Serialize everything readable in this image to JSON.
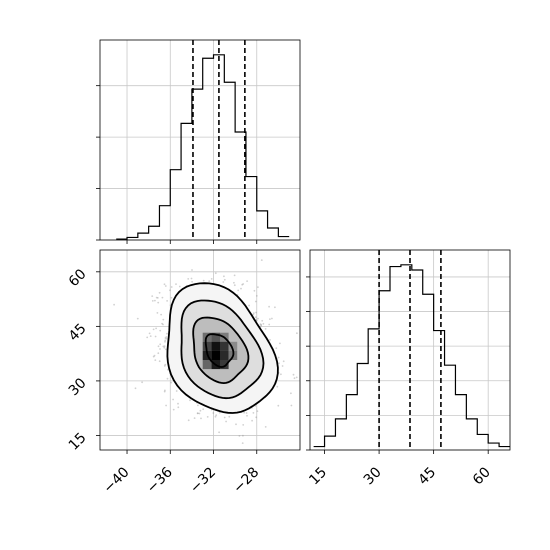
{
  "chart_data": [
    {
      "panel": "top-left",
      "type": "histogram",
      "variable": "x",
      "xlim": [
        -42.5,
        -24
      ],
      "bins": [
        -41,
        -40,
        -39,
        -38,
        -37,
        -36,
        -35,
        -34,
        -33,
        -32,
        -31,
        -30,
        -29,
        -28,
        -27,
        -26,
        -25
      ],
      "values": [
        0.5,
        1.5,
        4,
        8,
        20,
        41,
        68,
        88,
        106,
        108,
        92,
        63,
        37,
        17,
        7,
        2
      ],
      "quantile_lines": [
        -33.9,
        -31.5,
        -29.1
      ],
      "grid": true
    },
    {
      "panel": "bottom-right",
      "type": "histogram",
      "variable": "y",
      "xlim": [
        11,
        66
      ],
      "xticks": [
        15,
        30,
        45,
        60
      ],
      "xtick_labels": [
        "15",
        "30",
        "45",
        "60"
      ],
      "bins": [
        12,
        15,
        18,
        21,
        24,
        27,
        30,
        33,
        36,
        39,
        42,
        45,
        48,
        51,
        54,
        57,
        60,
        63,
        66
      ],
      "values": [
        2,
        8,
        18,
        32,
        50,
        70,
        92,
        106,
        107,
        104,
        90,
        69,
        49,
        32,
        18,
        9,
        4,
        2
      ],
      "quantile_lines": [
        30,
        38.5,
        47
      ],
      "grid": true
    },
    {
      "panel": "bottom-left",
      "type": "scatter-contour",
      "x_variable": "x",
      "y_variable": "y",
      "xlim": [
        -42.5,
        -24
      ],
      "ylim": [
        11,
        66
      ],
      "xticks": [
        -40,
        -36,
        -32,
        -28
      ],
      "xtick_labels": [
        "−40",
        "−36",
        "−32",
        "−28"
      ],
      "yticks": [
        15,
        30,
        45,
        60
      ],
      "ytick_labels": [
        "15",
        "30",
        "45",
        "60"
      ],
      "center": [
        -31.5,
        38.5
      ],
      "sigma": [
        2.4,
        8.5
      ],
      "correlation": -0.25,
      "contour_levels_sigma": [
        0.5,
        1.0,
        1.5,
        2.0
      ],
      "grid": true
    }
  ]
}
